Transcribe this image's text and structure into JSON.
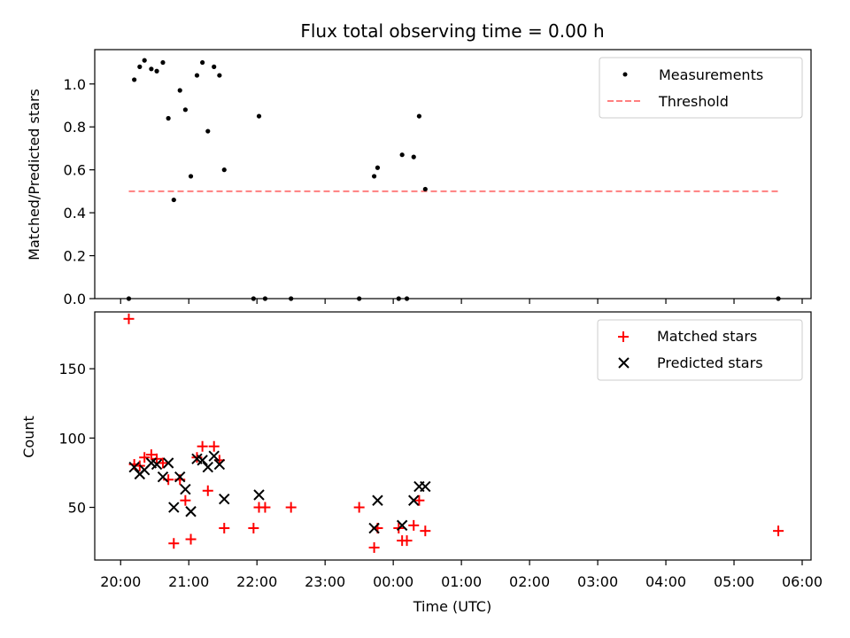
{
  "chart_data": [
    {
      "type": "scatter",
      "title": "Flux total observing time = 0.00 h",
      "ylabel": "Matched/Predicted stars",
      "xlabel": "",
      "xlim_hours": [
        19.62,
        30.13
      ],
      "ylim": [
        0,
        1.16
      ],
      "yticks": [
        0.0,
        0.2,
        0.4,
        0.6,
        0.8,
        1.0
      ],
      "ytick_labels": [
        "0.0",
        "0.2",
        "0.4",
        "0.6",
        "0.8",
        "1.0"
      ],
      "legend_position": "top-right",
      "series": [
        {
          "name": "Measurements",
          "marker": "dot",
          "color": "#000000",
          "points": [
            [
              20.12,
              0.0
            ],
            [
              20.2,
              1.02
            ],
            [
              20.28,
              1.08
            ],
            [
              20.35,
              1.11
            ],
            [
              20.45,
              1.07
            ],
            [
              20.53,
              1.06
            ],
            [
              20.62,
              1.1
            ],
            [
              20.7,
              0.84
            ],
            [
              20.78,
              0.46
            ],
            [
              20.87,
              0.97
            ],
            [
              20.95,
              0.88
            ],
            [
              21.03,
              0.57
            ],
            [
              21.12,
              1.04
            ],
            [
              21.2,
              1.1
            ],
            [
              21.28,
              0.78
            ],
            [
              21.37,
              1.08
            ],
            [
              21.45,
              1.04
            ],
            [
              21.52,
              0.6
            ],
            [
              21.95,
              0.0
            ],
            [
              22.03,
              0.85
            ],
            [
              22.12,
              0.0
            ],
            [
              22.5,
              0.0
            ],
            [
              23.5,
              0.0
            ],
            [
              23.72,
              0.57
            ],
            [
              23.77,
              0.61
            ],
            [
              24.08,
              0.0
            ],
            [
              24.13,
              0.67
            ],
            [
              24.2,
              0.0
            ],
            [
              24.3,
              0.66
            ],
            [
              24.38,
              0.85
            ],
            [
              24.47,
              0.51
            ],
            [
              29.65,
              0.0
            ]
          ]
        },
        {
          "name": "Threshold",
          "style": "dashed",
          "color": "#ff7f7f",
          "x": [
            20.12,
            29.65
          ],
          "y": [
            0.5,
            0.5
          ]
        }
      ]
    },
    {
      "type": "scatter",
      "xlabel": "Time (UTC)",
      "ylabel": "Count",
      "xlim_hours": [
        19.62,
        30.13
      ],
      "ylim": [
        12,
        191
      ],
      "yticks": [
        50,
        100,
        150
      ],
      "ytick_labels": [
        "50",
        "100",
        "150"
      ],
      "xticks_hours": [
        20,
        21,
        22,
        23,
        24,
        25,
        26,
        27,
        28,
        29,
        30
      ],
      "xtick_labels": [
        "20:00",
        "21:00",
        "22:00",
        "23:00",
        "00:00",
        "01:00",
        "02:00",
        "03:00",
        "04:00",
        "05:00",
        "06:00"
      ],
      "legend_position": "top-right",
      "series": [
        {
          "name": "Matched stars",
          "marker": "plus",
          "color": "#ff0000",
          "points": [
            [
              20.12,
              186
            ],
            [
              20.2,
              81
            ],
            [
              20.28,
              80
            ],
            [
              20.35,
              86
            ],
            [
              20.45,
              88
            ],
            [
              20.53,
              85
            ],
            [
              20.62,
              82
            ],
            [
              20.7,
              70
            ],
            [
              20.78,
              24
            ],
            [
              20.87,
              70
            ],
            [
              20.95,
              55
            ],
            [
              21.03,
              27
            ],
            [
              21.12,
              86
            ],
            [
              21.2,
              94
            ],
            [
              21.28,
              62
            ],
            [
              21.37,
              94
            ],
            [
              21.45,
              84
            ],
            [
              21.52,
              35
            ],
            [
              21.95,
              35
            ],
            [
              22.03,
              50
            ],
            [
              22.12,
              50
            ],
            [
              22.5,
              50
            ],
            [
              23.5,
              50
            ],
            [
              23.72,
              21
            ],
            [
              23.77,
              35
            ],
            [
              24.08,
              35
            ],
            [
              24.13,
              26
            ],
            [
              24.2,
              26
            ],
            [
              24.3,
              37
            ],
            [
              24.38,
              55
            ],
            [
              24.47,
              33
            ],
            [
              29.65,
              33
            ]
          ]
        },
        {
          "name": "Predicted stars",
          "marker": "x",
          "color": "#000000",
          "points": [
            [
              20.2,
              79
            ],
            [
              20.28,
              74
            ],
            [
              20.35,
              77
            ],
            [
              20.45,
              82
            ],
            [
              20.53,
              81
            ],
            [
              20.62,
              72
            ],
            [
              20.7,
              82
            ],
            [
              20.78,
              50
            ],
            [
              20.87,
              72
            ],
            [
              20.95,
              63
            ],
            [
              21.03,
              47
            ],
            [
              21.12,
              85
            ],
            [
              21.2,
              84
            ],
            [
              21.28,
              79
            ],
            [
              21.37,
              87
            ],
            [
              21.45,
              81
            ],
            [
              21.52,
              56
            ],
            [
              22.03,
              59
            ],
            [
              23.72,
              35
            ],
            [
              23.77,
              55
            ],
            [
              24.13,
              37
            ],
            [
              24.3,
              55
            ],
            [
              24.38,
              65
            ],
            [
              24.47,
              65
            ]
          ]
        }
      ]
    }
  ]
}
